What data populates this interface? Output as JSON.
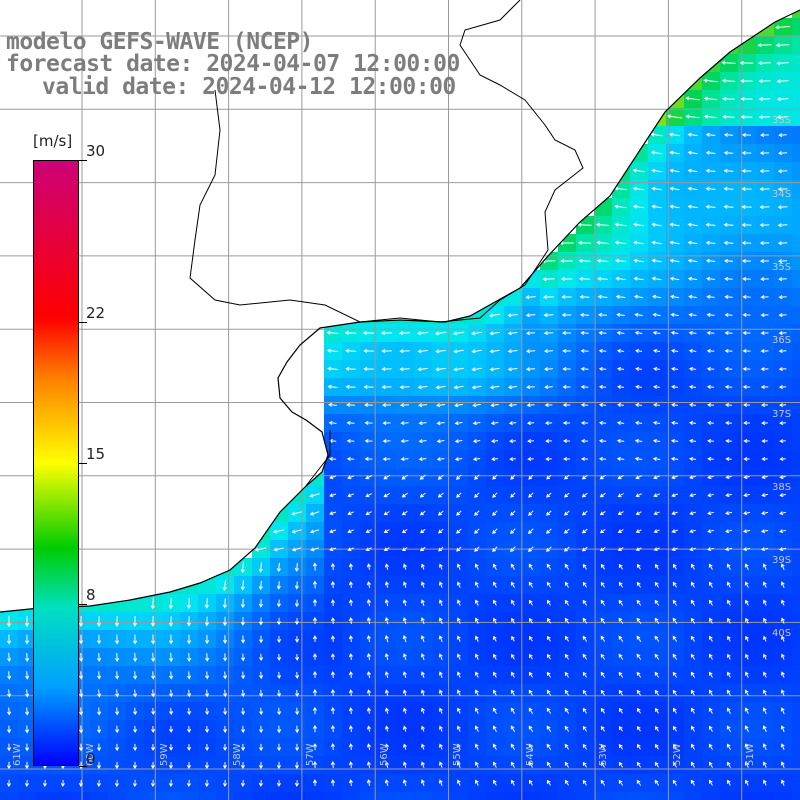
{
  "title": {
    "line1": "modelo GEFS-WAVE (NCEP)",
    "line2": "forecast date: 2024-04-07 12:00:00",
    "line3": "valid date: 2024-04-12 12:00:00"
  },
  "colorbar": {
    "unit": "[m/s]",
    "ticks": [
      {
        "label": "30",
        "value": 30
      },
      {
        "label": "22",
        "value": 22
      },
      {
        "label": "15",
        "value": 15
      },
      {
        "label": "8",
        "value": 8
      },
      {
        "label": "0",
        "value": 0
      }
    ],
    "min": 0,
    "max": 30
  },
  "map": {
    "land_color": "#ffffff",
    "coast_color": "#000000",
    "grid_color": "#9a9a9a",
    "arrow_color": "#ffffff",
    "lat_labels": [
      "33S",
      "34S",
      "35S",
      "36S",
      "37S",
      "38S",
      "39S",
      "40S"
    ],
    "lon_labels": [
      "61W",
      "60W",
      "59W",
      "58W",
      "57W",
      "56W",
      "55W",
      "54W",
      "53W",
      "52W",
      "51W"
    ]
  }
}
